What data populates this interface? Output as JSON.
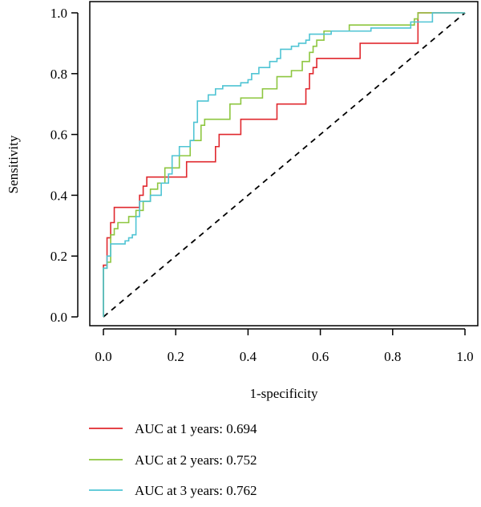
{
  "chart_data": {
    "type": "line",
    "title": "",
    "xlabel": "1-specificity",
    "ylabel": "Sensitivity",
    "xlim": [
      0,
      1
    ],
    "ylim": [
      0,
      1
    ],
    "x_ticks": [
      "0.0",
      "0.2",
      "0.4",
      "0.6",
      "0.8",
      "1.0"
    ],
    "y_ticks": [
      "0.0",
      "0.2",
      "0.4",
      "0.6",
      "0.8",
      "1.0"
    ],
    "grid": false,
    "legend_position": "bottom",
    "reference_line": {
      "style": "dashed",
      "color": "#000000",
      "from": [
        0,
        0
      ],
      "to": [
        1,
        1
      ]
    },
    "series": [
      {
        "name": "AUC at 1 years: 0.694",
        "color": "#e0282e",
        "points": [
          [
            0,
            0
          ],
          [
            0,
            0.16
          ],
          [
            0,
            0.17
          ],
          [
            0.01,
            0.17
          ],
          [
            0.01,
            0.21
          ],
          [
            0.01,
            0.26
          ],
          [
            0.02,
            0.26
          ],
          [
            0.02,
            0.31
          ],
          [
            0.03,
            0.31
          ],
          [
            0.03,
            0.36
          ],
          [
            0.1,
            0.36
          ],
          [
            0.1,
            0.4
          ],
          [
            0.11,
            0.4
          ],
          [
            0.11,
            0.43
          ],
          [
            0.12,
            0.43
          ],
          [
            0.12,
            0.46
          ],
          [
            0.23,
            0.46
          ],
          [
            0.23,
            0.51
          ],
          [
            0.31,
            0.51
          ],
          [
            0.31,
            0.56
          ],
          [
            0.32,
            0.56
          ],
          [
            0.32,
            0.6
          ],
          [
            0.38,
            0.6
          ],
          [
            0.38,
            0.65
          ],
          [
            0.48,
            0.65
          ],
          [
            0.48,
            0.7
          ],
          [
            0.56,
            0.7
          ],
          [
            0.56,
            0.75
          ],
          [
            0.57,
            0.75
          ],
          [
            0.57,
            0.8
          ],
          [
            0.58,
            0.8
          ],
          [
            0.58,
            0.82
          ],
          [
            0.59,
            0.82
          ],
          [
            0.59,
            0.85
          ],
          [
            0.71,
            0.85
          ],
          [
            0.71,
            0.9
          ],
          [
            0.87,
            0.9
          ],
          [
            0.87,
            0.95
          ],
          [
            0.87,
            1.0
          ],
          [
            1.0,
            1.0
          ]
        ]
      },
      {
        "name": "AUC at 2 years: 0.752",
        "color": "#8dc63f",
        "points": [
          [
            0,
            0
          ],
          [
            0,
            0.16
          ],
          [
            0.01,
            0.16
          ],
          [
            0.01,
            0.18
          ],
          [
            0.02,
            0.18
          ],
          [
            0.02,
            0.27
          ],
          [
            0.03,
            0.27
          ],
          [
            0.03,
            0.29
          ],
          [
            0.04,
            0.29
          ],
          [
            0.04,
            0.31
          ],
          [
            0.07,
            0.31
          ],
          [
            0.07,
            0.33
          ],
          [
            0.09,
            0.33
          ],
          [
            0.09,
            0.35
          ],
          [
            0.11,
            0.35
          ],
          [
            0.11,
            0.38
          ],
          [
            0.13,
            0.38
          ],
          [
            0.13,
            0.42
          ],
          [
            0.15,
            0.42
          ],
          [
            0.15,
            0.44
          ],
          [
            0.17,
            0.44
          ],
          [
            0.17,
            0.49
          ],
          [
            0.21,
            0.49
          ],
          [
            0.21,
            0.53
          ],
          [
            0.24,
            0.53
          ],
          [
            0.24,
            0.58
          ],
          [
            0.27,
            0.58
          ],
          [
            0.27,
            0.63
          ],
          [
            0.28,
            0.63
          ],
          [
            0.28,
            0.65
          ],
          [
            0.35,
            0.65
          ],
          [
            0.35,
            0.7
          ],
          [
            0.38,
            0.7
          ],
          [
            0.38,
            0.72
          ],
          [
            0.44,
            0.72
          ],
          [
            0.44,
            0.75
          ],
          [
            0.48,
            0.75
          ],
          [
            0.48,
            0.79
          ],
          [
            0.52,
            0.79
          ],
          [
            0.52,
            0.81
          ],
          [
            0.55,
            0.81
          ],
          [
            0.55,
            0.84
          ],
          [
            0.57,
            0.84
          ],
          [
            0.57,
            0.87
          ],
          [
            0.58,
            0.87
          ],
          [
            0.58,
            0.89
          ],
          [
            0.59,
            0.89
          ],
          [
            0.59,
            0.91
          ],
          [
            0.61,
            0.91
          ],
          [
            0.61,
            0.94
          ],
          [
            0.68,
            0.94
          ],
          [
            0.68,
            0.96
          ],
          [
            0.86,
            0.96
          ],
          [
            0.86,
            0.98
          ],
          [
            0.87,
            0.98
          ],
          [
            0.87,
            1.0
          ],
          [
            1.0,
            1.0
          ]
        ]
      },
      {
        "name": "AUC at 3 years: 0.762",
        "color": "#4fc4d4",
        "points": [
          [
            0,
            0
          ],
          [
            0,
            0.16
          ],
          [
            0.01,
            0.16
          ],
          [
            0.01,
            0.2
          ],
          [
            0.02,
            0.2
          ],
          [
            0.02,
            0.24
          ],
          [
            0.06,
            0.24
          ],
          [
            0.06,
            0.25
          ],
          [
            0.07,
            0.25
          ],
          [
            0.07,
            0.26
          ],
          [
            0.08,
            0.26
          ],
          [
            0.08,
            0.27
          ],
          [
            0.09,
            0.27
          ],
          [
            0.09,
            0.33
          ],
          [
            0.1,
            0.33
          ],
          [
            0.1,
            0.38
          ],
          [
            0.13,
            0.38
          ],
          [
            0.13,
            0.4
          ],
          [
            0.16,
            0.4
          ],
          [
            0.16,
            0.44
          ],
          [
            0.18,
            0.44
          ],
          [
            0.18,
            0.47
          ],
          [
            0.19,
            0.47
          ],
          [
            0.19,
            0.53
          ],
          [
            0.21,
            0.53
          ],
          [
            0.21,
            0.56
          ],
          [
            0.24,
            0.56
          ],
          [
            0.24,
            0.58
          ],
          [
            0.25,
            0.58
          ],
          [
            0.25,
            0.64
          ],
          [
            0.26,
            0.64
          ],
          [
            0.26,
            0.71
          ],
          [
            0.29,
            0.71
          ],
          [
            0.29,
            0.73
          ],
          [
            0.31,
            0.73
          ],
          [
            0.31,
            0.75
          ],
          [
            0.33,
            0.75
          ],
          [
            0.33,
            0.76
          ],
          [
            0.38,
            0.76
          ],
          [
            0.38,
            0.77
          ],
          [
            0.4,
            0.77
          ],
          [
            0.4,
            0.78
          ],
          [
            0.41,
            0.78
          ],
          [
            0.41,
            0.8
          ],
          [
            0.43,
            0.8
          ],
          [
            0.43,
            0.82
          ],
          [
            0.46,
            0.82
          ],
          [
            0.46,
            0.84
          ],
          [
            0.48,
            0.84
          ],
          [
            0.48,
            0.85
          ],
          [
            0.49,
            0.85
          ],
          [
            0.49,
            0.88
          ],
          [
            0.52,
            0.88
          ],
          [
            0.52,
            0.89
          ],
          [
            0.54,
            0.89
          ],
          [
            0.54,
            0.9
          ],
          [
            0.56,
            0.9
          ],
          [
            0.56,
            0.91
          ],
          [
            0.57,
            0.91
          ],
          [
            0.57,
            0.93
          ],
          [
            0.63,
            0.93
          ],
          [
            0.63,
            0.94
          ],
          [
            0.74,
            0.94
          ],
          [
            0.74,
            0.95
          ],
          [
            0.85,
            0.95
          ],
          [
            0.85,
            0.97
          ],
          [
            0.91,
            0.97
          ],
          [
            0.91,
            1.0
          ],
          [
            1.0,
            1.0
          ]
        ]
      }
    ]
  }
}
